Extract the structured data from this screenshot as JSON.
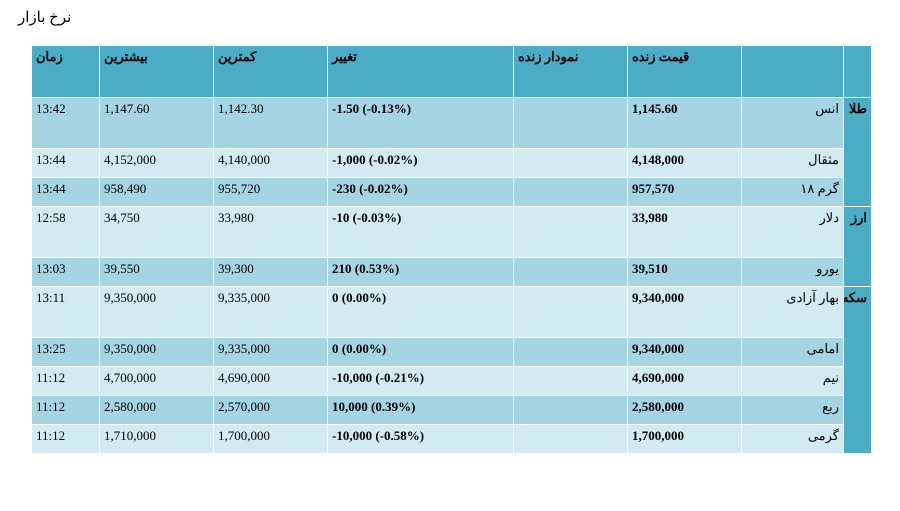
{
  "title": "نرخ بازار",
  "headers": {
    "group": "",
    "name": "",
    "price": "قیمت زنده",
    "chart": "نمودار زنده",
    "change": "تغییر",
    "low": "کمترین",
    "high": "بیشترین",
    "time": "زمان"
  },
  "groups": [
    {
      "label": "طلا",
      "rows": [
        {
          "name": "انس",
          "price": "1,145.60",
          "chart": "",
          "change": "-1.50 (-0.13%)",
          "low": "1,142.30",
          "high": "1,147.60",
          "time": "13:42"
        },
        {
          "name": "مثقال",
          "price": "4,148,000",
          "chart": "",
          "change": "-1,000 (-0.02%)",
          "low": "4,140,000",
          "high": "4,152,000",
          "time": "13:44"
        },
        {
          "name": "گرم ۱۸",
          "price": "957,570",
          "chart": "",
          "change": "-230 (-0.02%)",
          "low": "955,720",
          "high": "958,490",
          "time": "13:44"
        }
      ]
    },
    {
      "label": "ارز",
      "rows": [
        {
          "name": "دلار",
          "price": "33,980",
          "chart": "",
          "change": "-10 (-0.03%)",
          "low": "33,980",
          "high": "34,750",
          "time": "12:58"
        },
        {
          "name": "یورو",
          "price": "39,510",
          "chart": "",
          "change": "210 (0.53%)",
          "low": "39,300",
          "high": "39,550",
          "time": "13:03"
        }
      ]
    },
    {
      "label": "سکه",
      "rows": [
        {
          "name": "بهار آزادی",
          "price": "9,340,000",
          "chart": "",
          "change": "0 (0.00%)",
          "low": "9,335,000",
          "high": "9,350,000",
          "time": "13:11"
        },
        {
          "name": "امامی",
          "price": "9,340,000",
          "chart": "",
          "change": "0 (0.00%)",
          "low": "9,335,000",
          "high": "9,350,000",
          "time": "13:25"
        },
        {
          "name": "نیم",
          "price": "4,690,000",
          "chart": "",
          "change": "-10,000 (-0.21%)",
          "low": "4,690,000",
          "high": "4,700,000",
          "time": "11:12"
        },
        {
          "name": "ربع",
          "price": "2,580,000",
          "chart": "",
          "change": "10,000 (0.39%)",
          "low": "2,570,000",
          "high": "2,580,000",
          "time": "11:12"
        },
        {
          "name": "گرمی",
          "price": "1,700,000",
          "chart": "",
          "change": "-10,000 (-0.58%)",
          "low": "1,700,000",
          "high": "1,710,000",
          "time": "11:12"
        }
      ]
    }
  ]
}
